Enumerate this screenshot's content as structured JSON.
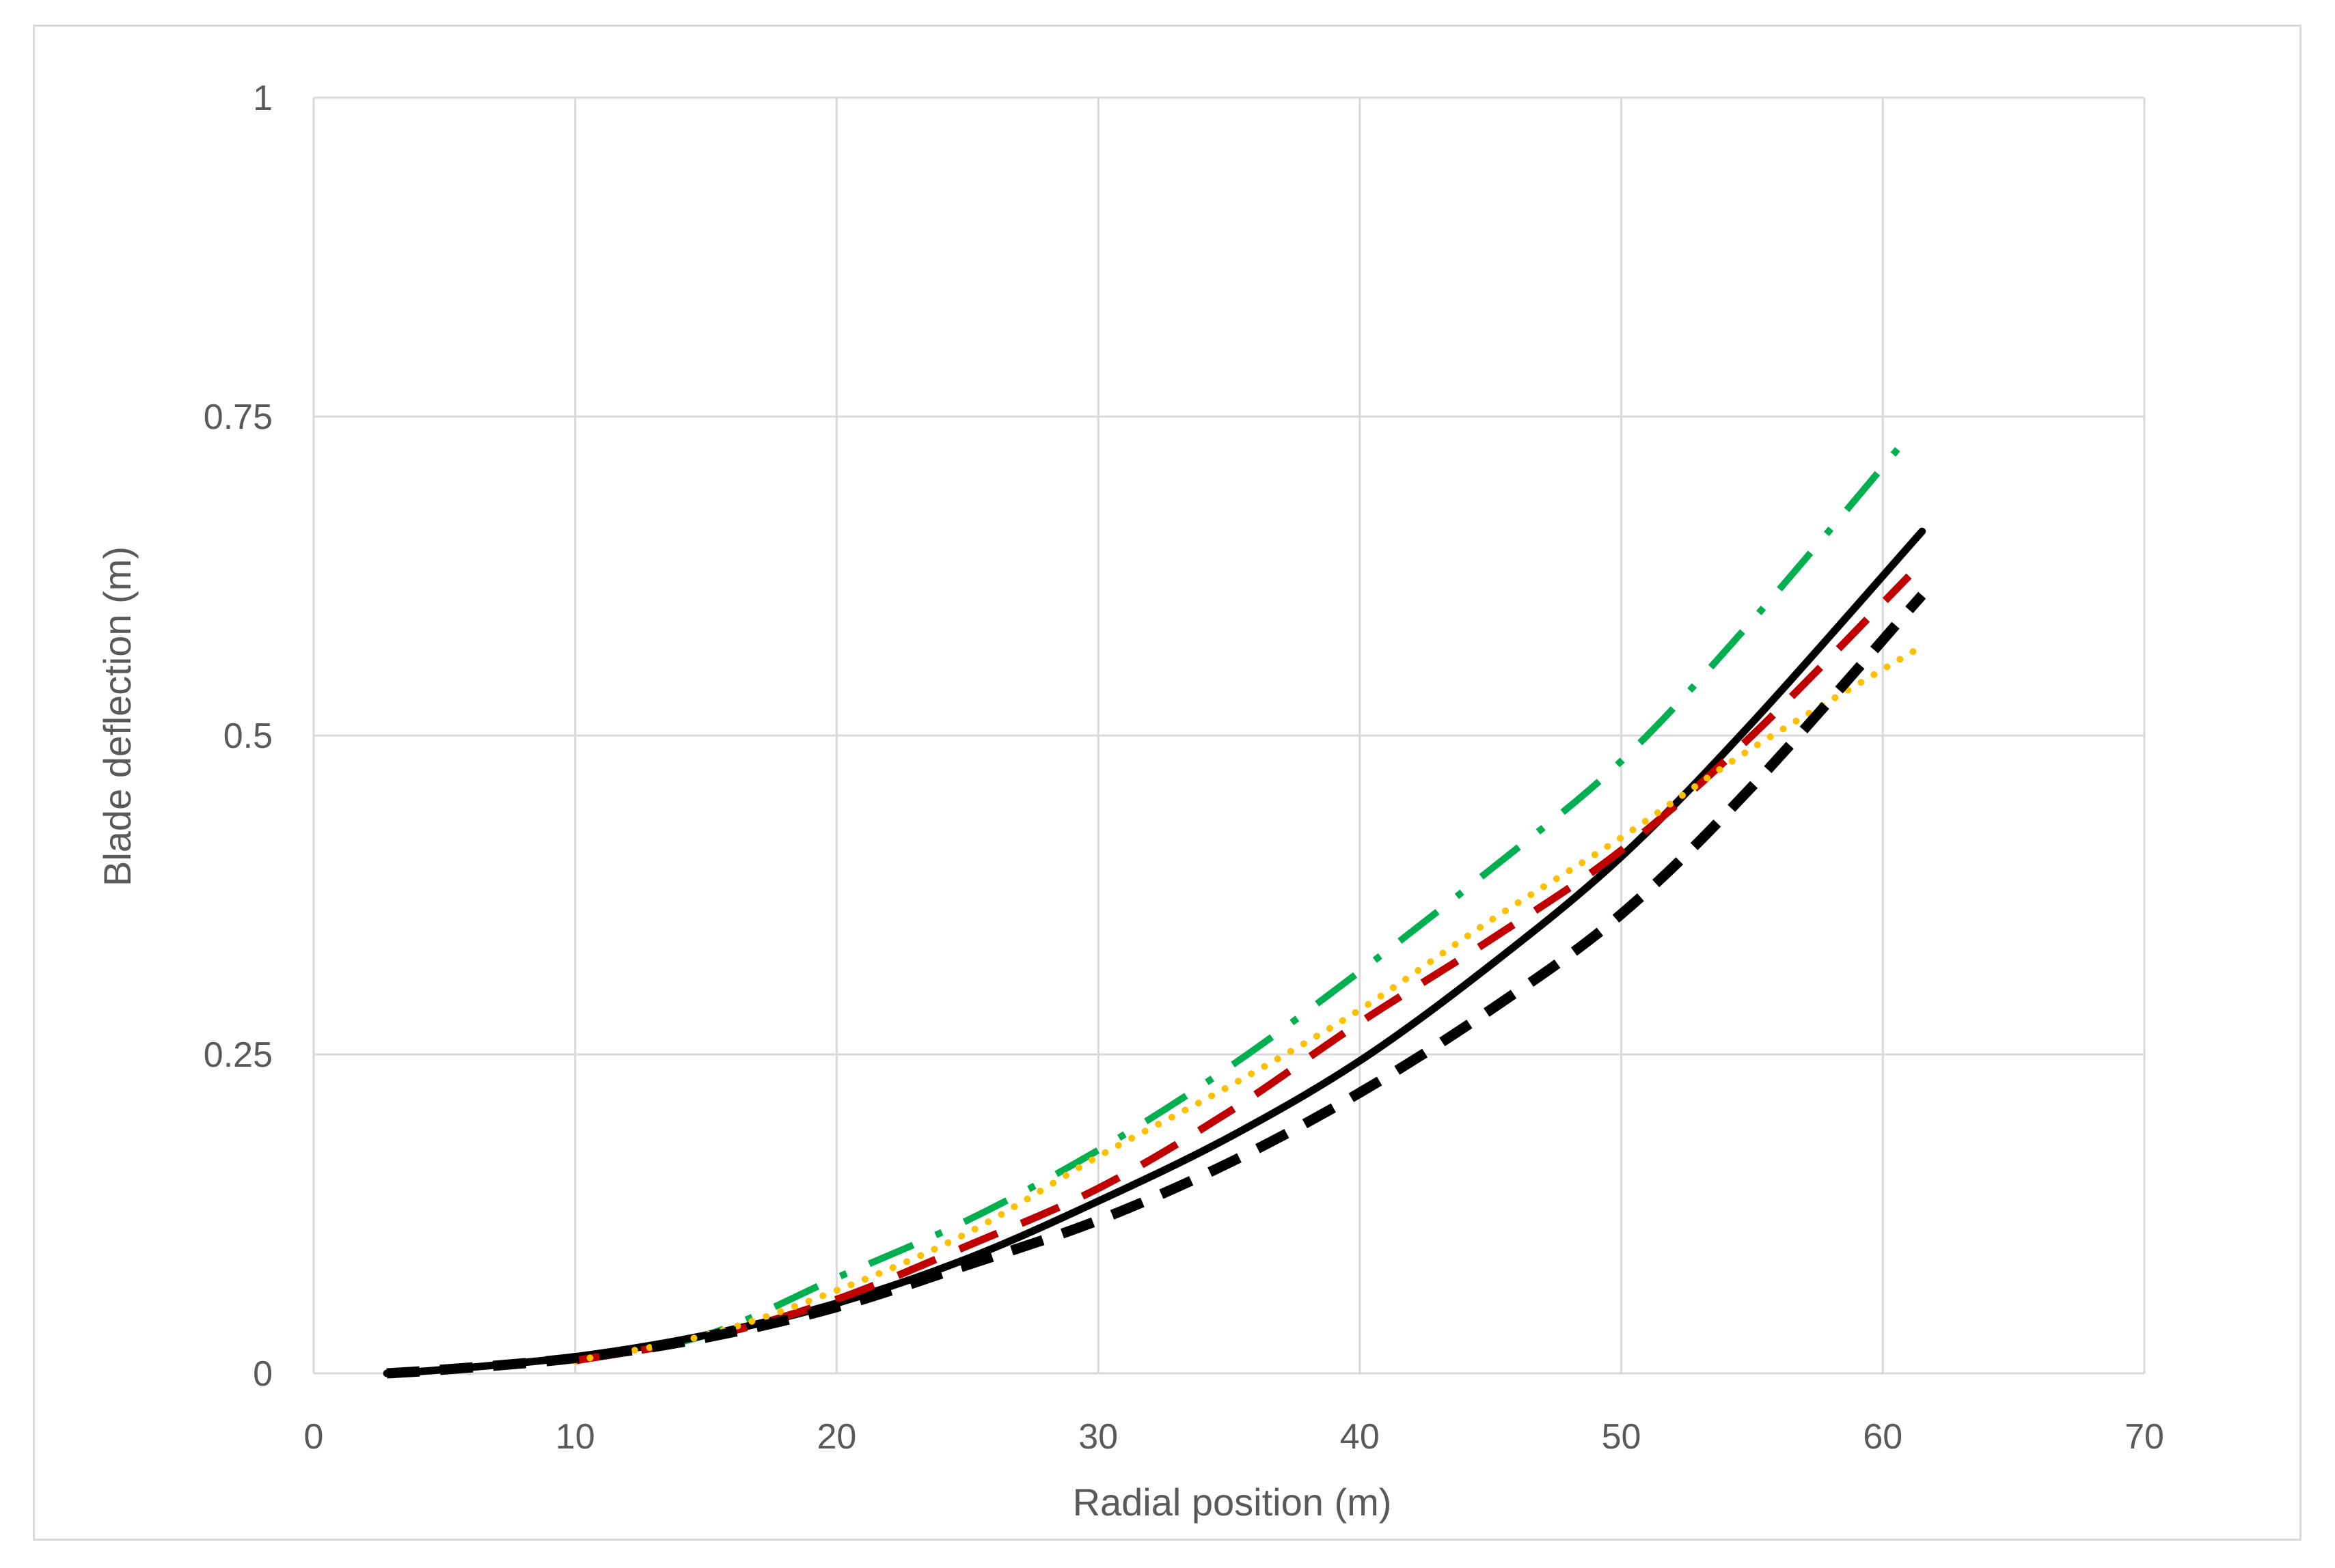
{
  "chart_data": {
    "type": "line",
    "title": "",
    "xlabel": "Radial position (m)",
    "ylabel": "Blade deflection (m)",
    "xlim": [
      0,
      70
    ],
    "ylim": [
      0,
      1
    ],
    "xticks": [
      0,
      10,
      20,
      30,
      40,
      50,
      60,
      70
    ],
    "yticks": [
      0,
      0.25,
      0.5,
      0.75,
      1
    ],
    "xtick_labels": [
      "0",
      "10",
      "20",
      "30",
      "40",
      "50",
      "60",
      "70"
    ],
    "ytick_labels": [
      "0",
      "0.25",
      "0.5",
      "0.75",
      "1"
    ],
    "grid": true,
    "legend": "none",
    "series": [
      {
        "color": "#00b050",
        "style": "dash-dot",
        "x": [
          10,
          15,
          20,
          25,
          30,
          35,
          40,
          45,
          50,
          55,
          61
        ],
        "y": [
          0.01,
          0.03,
          0.075,
          0.12,
          0.175,
          0.24,
          0.315,
          0.395,
          0.48,
          0.59,
          0.735
        ]
      },
      {
        "color": "#000000",
        "style": "solid",
        "x": [
          2.8,
          5,
          10,
          15,
          20,
          25,
          30,
          35,
          40,
          45,
          50,
          55,
          61.5
        ],
        "y": [
          0,
          0.003,
          0.013,
          0.03,
          0.055,
          0.09,
          0.135,
          0.185,
          0.245,
          0.32,
          0.405,
          0.51,
          0.66
        ]
      },
      {
        "color": "#c00000",
        "style": "dash",
        "x": [
          10,
          15,
          20,
          25,
          30,
          35,
          40,
          45,
          50,
          55,
          61
        ],
        "y": [
          0.01,
          0.028,
          0.058,
          0.1,
          0.145,
          0.205,
          0.275,
          0.34,
          0.41,
          0.5,
          0.625
        ]
      },
      {
        "color": "#ffc000",
        "style": "dot",
        "x": [
          10,
          15,
          20,
          25,
          30,
          35,
          40,
          45,
          50,
          55,
          61.5
        ],
        "y": [
          0.01,
          0.03,
          0.065,
          0.11,
          0.17,
          0.225,
          0.285,
          0.355,
          0.42,
          0.49,
          0.57
        ]
      },
      {
        "color": "#000000",
        "style": "thick-dash",
        "x": [
          2.8,
          5,
          10,
          15,
          20,
          25,
          30,
          35,
          40,
          45,
          50,
          55,
          61.5
        ],
        "y": [
          0,
          0.003,
          0.012,
          0.028,
          0.052,
          0.085,
          0.12,
          0.165,
          0.22,
          0.285,
          0.36,
          0.46,
          0.61
        ]
      }
    ]
  }
}
